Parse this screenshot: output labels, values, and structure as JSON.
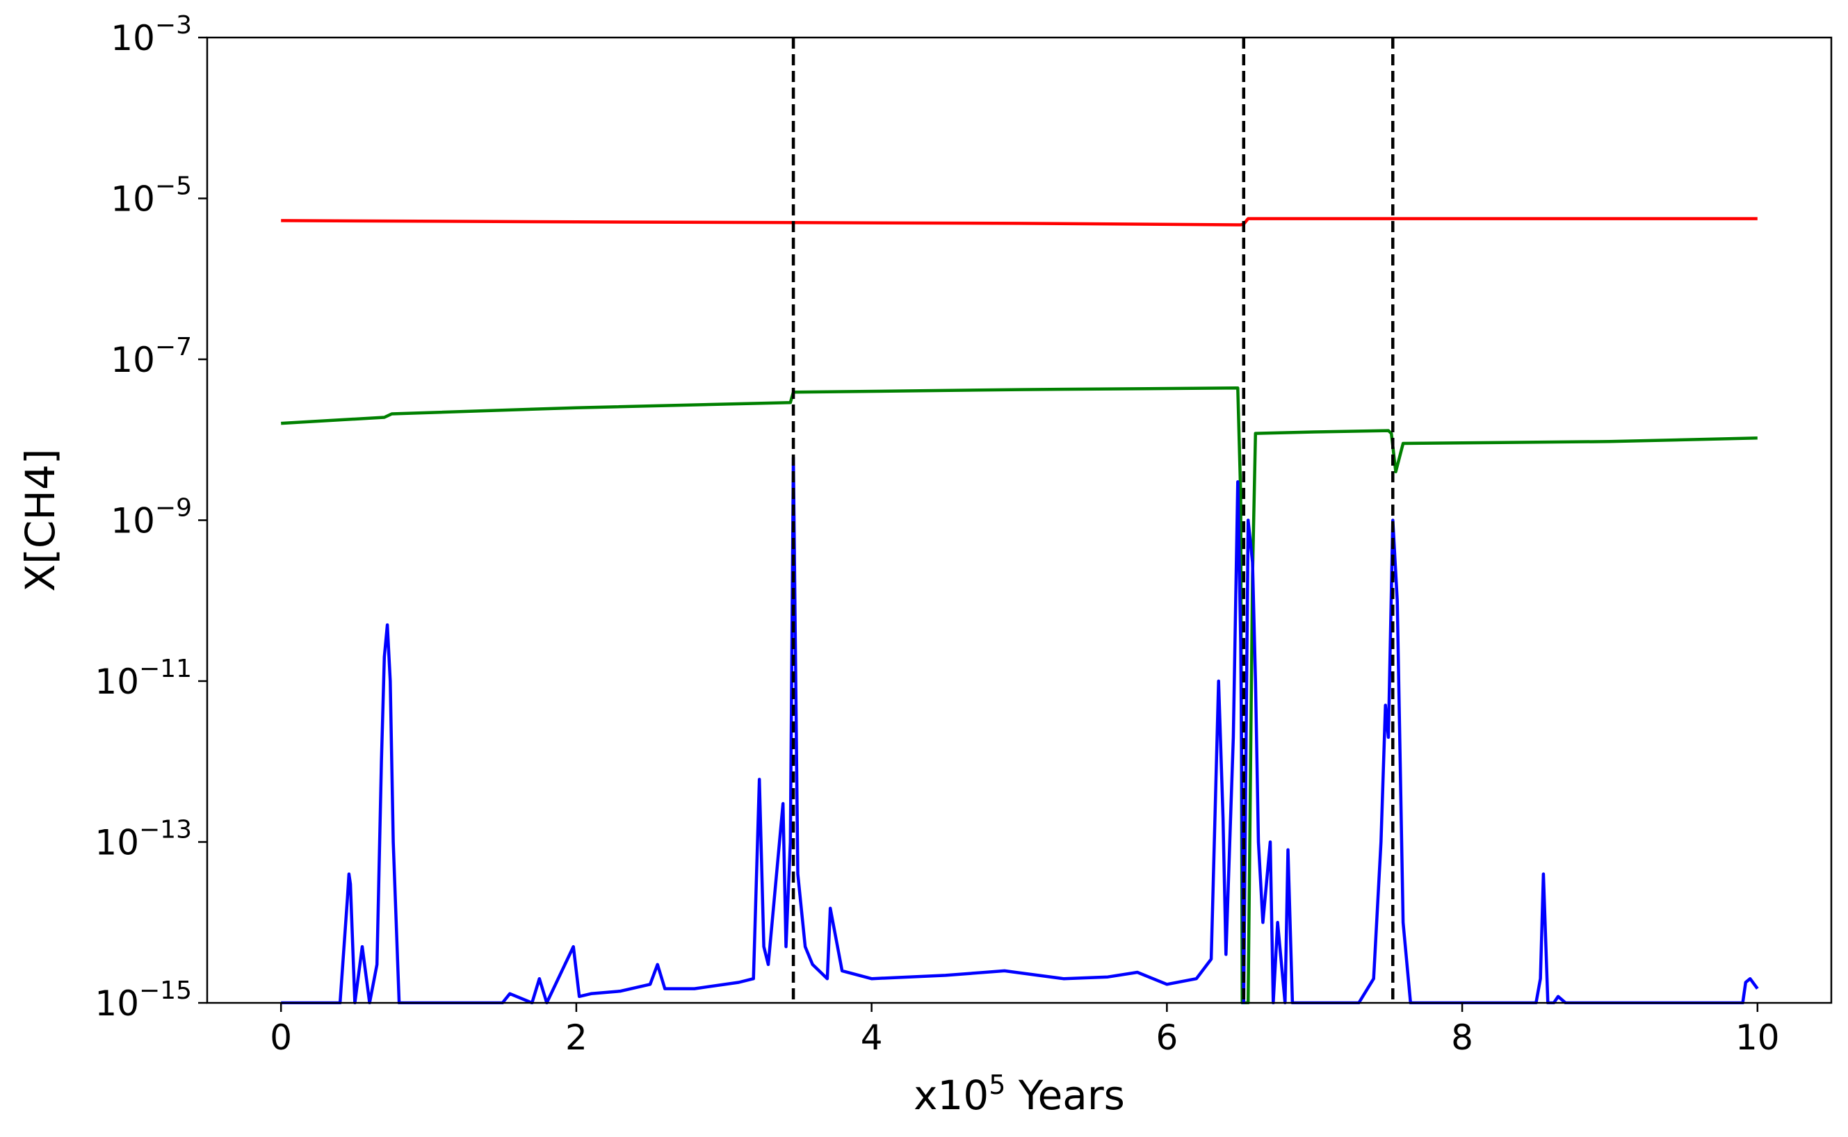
{
  "chart_data": {
    "type": "line",
    "title": "",
    "xlabel_prefix": "x10",
    "xlabel_exp": "5",
    "xlabel_suffix": " Years",
    "ylabel": "X[CH4]",
    "xlim": [
      -0.5,
      10.5
    ],
    "ylim": [
      1e-15,
      0.001
    ],
    "yscale": "log",
    "grid": false,
    "legend": "none",
    "x_ticks": [
      0,
      2,
      4,
      6,
      8,
      10
    ],
    "x_tick_labels": [
      "0",
      "2",
      "4",
      "6",
      "8",
      "10"
    ],
    "y_ticks": [
      -15,
      -13,
      -11,
      -9,
      -7,
      -5,
      -3
    ],
    "y_tick_base": "10",
    "y_tick_exponents": [
      "−15",
      "−13",
      "−11",
      "−9",
      "−7",
      "−5",
      "−3"
    ],
    "vlines": [
      3.47,
      6.52,
      7.53
    ],
    "series": [
      {
        "color": "#ff0000",
        "x": [
          0,
          2,
          3.47,
          5,
          6.5,
          6.52,
          6.55,
          7,
          7.53,
          8,
          9,
          10
        ],
        "y": [
          5.3e-06,
          5.1e-06,
          5e-06,
          4.9e-06,
          4.7e-06,
          4.8e-06,
          5.6e-06,
          5.6e-06,
          5.6e-06,
          5.6e-06,
          5.6e-06,
          5.6e-06
        ]
      },
      {
        "color": "#008000",
        "x": [
          0,
          0.7,
          0.75,
          2,
          3.45,
          3.47,
          5,
          6.48,
          6.5,
          6.51,
          6.52,
          6.55,
          6.58,
          6.6,
          7,
          7.5,
          7.52,
          7.55,
          7.6,
          9,
          10
        ],
        "y": [
          1.6e-08,
          1.9e-08,
          2.1e-08,
          2.5e-08,
          2.9e-08,
          3.9e-08,
          4.2e-08,
          4.4e-08,
          2e-09,
          1e-15,
          1e-15,
          1e-15,
          2e-10,
          1.2e-08,
          1.25e-08,
          1.3e-08,
          1.2e-08,
          4e-09,
          9e-09,
          9.5e-09,
          1.05e-08
        ]
      },
      {
        "color": "#0000ff",
        "x": [
          0,
          0.25,
          0.3,
          0.4,
          0.45,
          0.46,
          0.47,
          0.5,
          0.55,
          0.6,
          0.65,
          0.68,
          0.7,
          0.72,
          0.74,
          0.76,
          0.8,
          0.85,
          1.15,
          1.2,
          1.5,
          1.55,
          1.7,
          1.75,
          1.8,
          1.98,
          2.02,
          2.1,
          2.3,
          2.5,
          2.55,
          2.6,
          2.8,
          3.1,
          3.2,
          3.24,
          3.27,
          3.3,
          3.4,
          3.42,
          3.45,
          3.47,
          3.5,
          3.55,
          3.6,
          3.7,
          3.72,
          3.8,
          4.0,
          4.5,
          4.9,
          5.3,
          5.6,
          5.8,
          6.0,
          6.2,
          6.3,
          6.35,
          6.38,
          6.4,
          6.45,
          6.48,
          6.5,
          6.52,
          6.55,
          6.58,
          6.6,
          6.62,
          6.65,
          6.7,
          6.72,
          6.75,
          6.8,
          6.82,
          6.85,
          6.9,
          6.95,
          7.0,
          7.3,
          7.4,
          7.45,
          7.48,
          7.5,
          7.53,
          7.56,
          7.58,
          7.6,
          7.65,
          7.7,
          8.5,
          8.53,
          8.55,
          8.58,
          8.62,
          8.65,
          8.7,
          9.9,
          9.92,
          9.95,
          10
        ],
        "y": [
          1e-15,
          1e-15,
          1e-15,
          1e-15,
          2e-14,
          4e-14,
          3e-14,
          1e-15,
          5e-15,
          1e-15,
          3e-15,
          1e-12,
          2e-11,
          5e-11,
          1e-11,
          1e-13,
          1e-15,
          1e-15,
          1e-15,
          1e-15,
          1e-15,
          1.3e-15,
          1e-15,
          2e-15,
          1e-15,
          5e-15,
          1.2e-15,
          1.3e-15,
          1.4e-15,
          1.7e-15,
          3e-15,
          1.5e-15,
          1.5e-15,
          1.8e-15,
          2e-15,
          6e-13,
          5e-15,
          3e-15,
          3e-13,
          5e-15,
          1e-13,
          6e-09,
          4e-14,
          5e-15,
          3e-15,
          2e-15,
          1.5e-14,
          2.5e-15,
          2e-15,
          2.2e-15,
          2.5e-15,
          2e-15,
          2.1e-15,
          2.4e-15,
          1.7e-15,
          2e-15,
          3.5e-15,
          1e-11,
          2e-13,
          4e-15,
          2e-12,
          3e-09,
          3e-11,
          1e-15,
          1e-09,
          3e-10,
          1e-11,
          1e-13,
          1e-14,
          1e-13,
          1e-15,
          1e-14,
          1e-15,
          8e-14,
          1e-15,
          1e-15,
          1e-15,
          1e-15,
          1e-15,
          2e-15,
          1e-13,
          5e-12,
          2e-12,
          1e-09,
          1e-10,
          1e-12,
          1e-14,
          1e-15,
          1e-15,
          1e-15,
          2e-15,
          4e-14,
          1e-15,
          1e-15,
          1.2e-15,
          1e-15,
          1e-15,
          1.8e-15,
          2e-15,
          1.5e-15
        ]
      }
    ]
  }
}
